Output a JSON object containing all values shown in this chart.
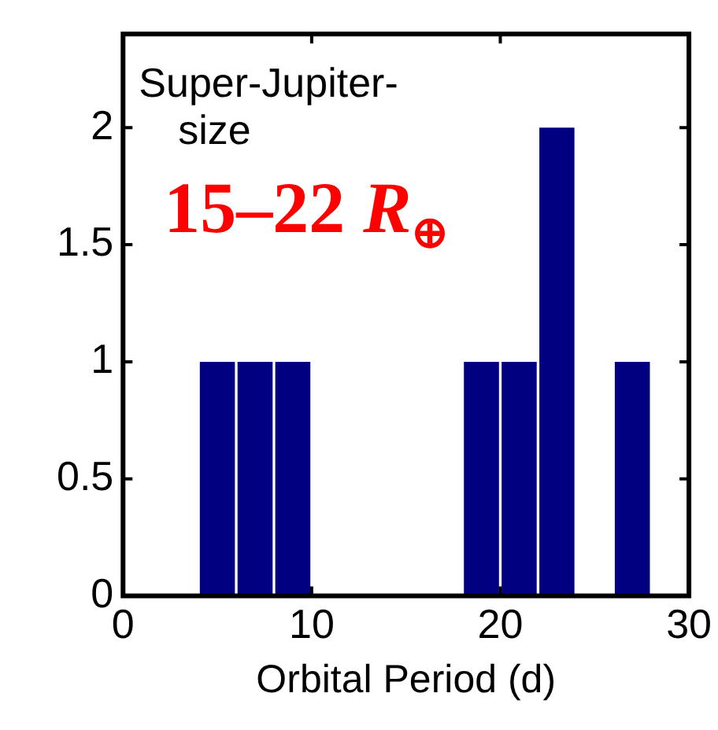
{
  "chart_data": {
    "type": "histogram",
    "xlabel": "Orbital Period (d)",
    "bins": [
      4,
      6,
      8,
      10,
      12,
      14,
      16,
      18,
      20,
      22,
      24,
      26,
      28
    ],
    "values": [
      1,
      1,
      1,
      0,
      0,
      0,
      0,
      1,
      1,
      2,
      0,
      1
    ],
    "color": "#000080",
    "xlim": [
      0,
      30
    ],
    "xticks": [
      0,
      10,
      20,
      30
    ],
    "ylim": [
      0,
      2.4
    ],
    "yticks": [
      0,
      0.5,
      1,
      1.5,
      2
    ],
    "annotations": [
      "Super-Jupiter-\nsize",
      "15–22 R$_{⊕}$"
    ],
    "grid": false,
    "legend": false
  }
}
